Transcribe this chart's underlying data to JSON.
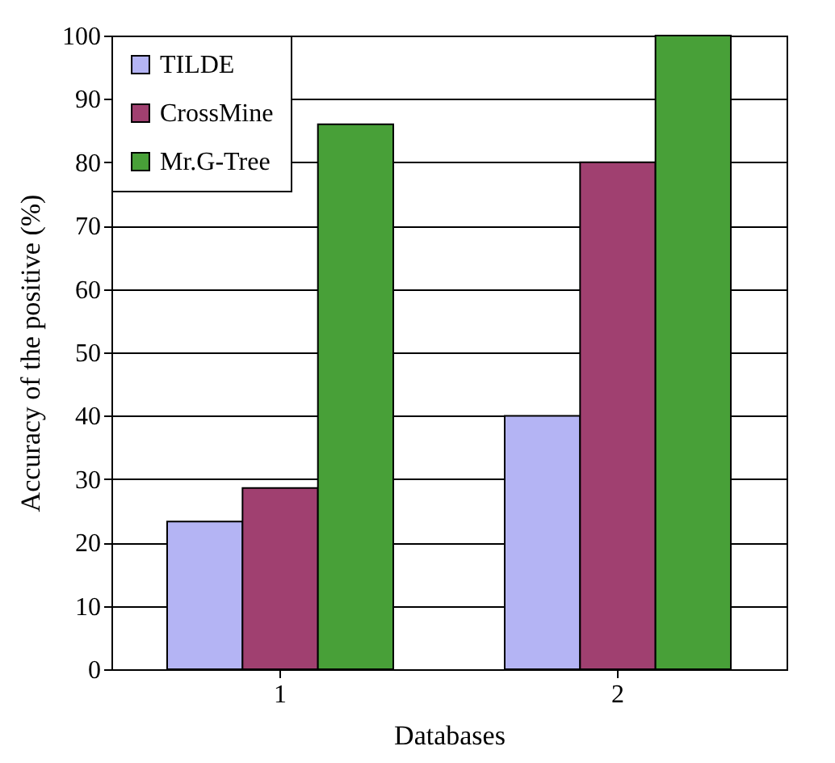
{
  "chart_data": {
    "type": "bar",
    "xlabel": "Databases",
    "ylabel": "Accuracy of the positive (%)",
    "categories": [
      "1",
      "2"
    ],
    "series": [
      {
        "name": "TILDE",
        "color": "#b4b4f4",
        "values": [
          23.3,
          40
        ]
      },
      {
        "name": "CrossMine",
        "color": "#a04070",
        "values": [
          28.6,
          80
        ]
      },
      {
        "name": "Mr.G-Tree",
        "color": "#48a038",
        "values": [
          86,
          100
        ]
      }
    ],
    "ylim": [
      0,
      100
    ],
    "yticks": [
      0,
      10,
      20,
      30,
      40,
      50,
      60,
      70,
      80,
      90,
      100
    ],
    "grid": "y",
    "legend": "top left"
  }
}
